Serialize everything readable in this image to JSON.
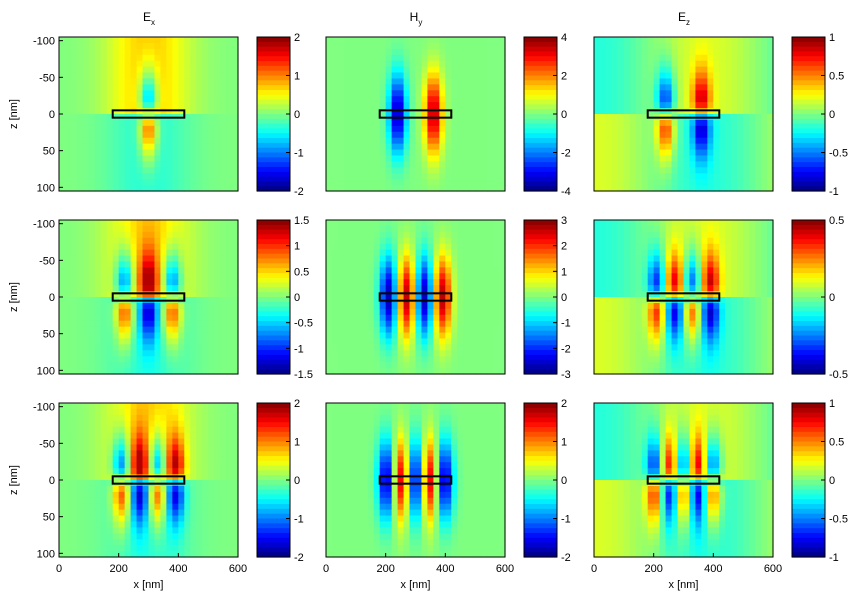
{
  "chart_data": {
    "type": "heatmap",
    "colormap": "jet",
    "column_titles": [
      {
        "base": "E",
        "sub": "x"
      },
      {
        "base": "H",
        "sub": "y"
      },
      {
        "base": "E",
        "sub": "z"
      }
    ],
    "xlabel": "x [nm]",
    "ylabel": "z [nm]",
    "x_ticks": [
      0,
      200,
      400,
      600
    ],
    "x_tick_labels": [
      "0",
      "200",
      "400",
      "600"
    ],
    "xlim": [
      0,
      600
    ],
    "y_ticks": [
      -100,
      -50,
      0,
      50,
      100
    ],
    "y_tick_labels": [
      "-100",
      "-50",
      "0",
      "50",
      "100"
    ],
    "ylim": [
      -105,
      105
    ],
    "y_reversed": true,
    "structure_box": {
      "x": [
        180,
        420
      ],
      "z": [
        -5,
        5
      ]
    },
    "panels": [
      {
        "row": 1,
        "col": 1,
        "field": "Ex",
        "clim": [
          -2,
          2
        ],
        "cbar_ticks": [
          -2,
          -1,
          0,
          1,
          2
        ],
        "cbar_tick_labels": [
          "-2",
          "-1",
          "0",
          "1",
          "2"
        ],
        "lobes": 1
      },
      {
        "row": 1,
        "col": 2,
        "field": "Hy",
        "clim": [
          -4,
          4
        ],
        "cbar_ticks": [
          -4,
          -2,
          0,
          2,
          4
        ],
        "cbar_tick_labels": [
          "-4",
          "-2",
          "0",
          "2",
          "4"
        ],
        "lobes": 2
      },
      {
        "row": 1,
        "col": 3,
        "field": "Ez",
        "clim": [
          -1,
          1
        ],
        "cbar_ticks": [
          -1,
          -0.5,
          0,
          0.5,
          1
        ],
        "cbar_tick_labels": [
          "-1",
          "-0.5",
          "0",
          "0.5",
          "1"
        ],
        "lobes": 2
      },
      {
        "row": 2,
        "col": 1,
        "field": "Ex",
        "clim": [
          -1.5,
          1.5
        ],
        "cbar_ticks": [
          -1.5,
          -1,
          -0.5,
          0,
          0.5,
          1,
          1.5
        ],
        "cbar_tick_labels": [
          "-1.5",
          "-1",
          "-0.5",
          "0",
          "0.5",
          "1",
          "1.5"
        ],
        "lobes": 3
      },
      {
        "row": 2,
        "col": 2,
        "field": "Hy",
        "clim": [
          -3,
          3
        ],
        "cbar_ticks": [
          -3,
          -2,
          -1,
          0,
          1,
          2,
          3
        ],
        "cbar_tick_labels": [
          "-3",
          "-2",
          "-1",
          "0",
          "1",
          "2",
          "3"
        ],
        "lobes": 4
      },
      {
        "row": 2,
        "col": 3,
        "field": "Ez",
        "clim": [
          -0.5,
          0.5
        ],
        "cbar_ticks": [
          -0.5,
          0,
          0.5
        ],
        "cbar_tick_labels": [
          "-0.5",
          "0",
          "0.5"
        ],
        "lobes": 4
      },
      {
        "row": 3,
        "col": 1,
        "field": "Ex",
        "clim": [
          -2,
          2
        ],
        "cbar_ticks": [
          -2,
          -1,
          0,
          1,
          2
        ],
        "cbar_tick_labels": [
          "-2",
          "-1",
          "0",
          "1",
          "2"
        ],
        "lobes": 4
      },
      {
        "row": 3,
        "col": 2,
        "field": "Hy",
        "clim": [
          -2,
          2
        ],
        "cbar_ticks": [
          -2,
          -1,
          0,
          1,
          2
        ],
        "cbar_tick_labels": [
          "-2",
          "-1",
          "0",
          "1",
          "2"
        ],
        "lobes": 5
      },
      {
        "row": 3,
        "col": 3,
        "field": "Ez",
        "clim": [
          -1,
          1
        ],
        "cbar_ticks": [
          -1,
          -0.5,
          0,
          0.5,
          1
        ],
        "cbar_tick_labels": [
          "-1",
          "-0.5",
          "0",
          "0.5",
          "1"
        ],
        "lobes": 5
      }
    ]
  }
}
